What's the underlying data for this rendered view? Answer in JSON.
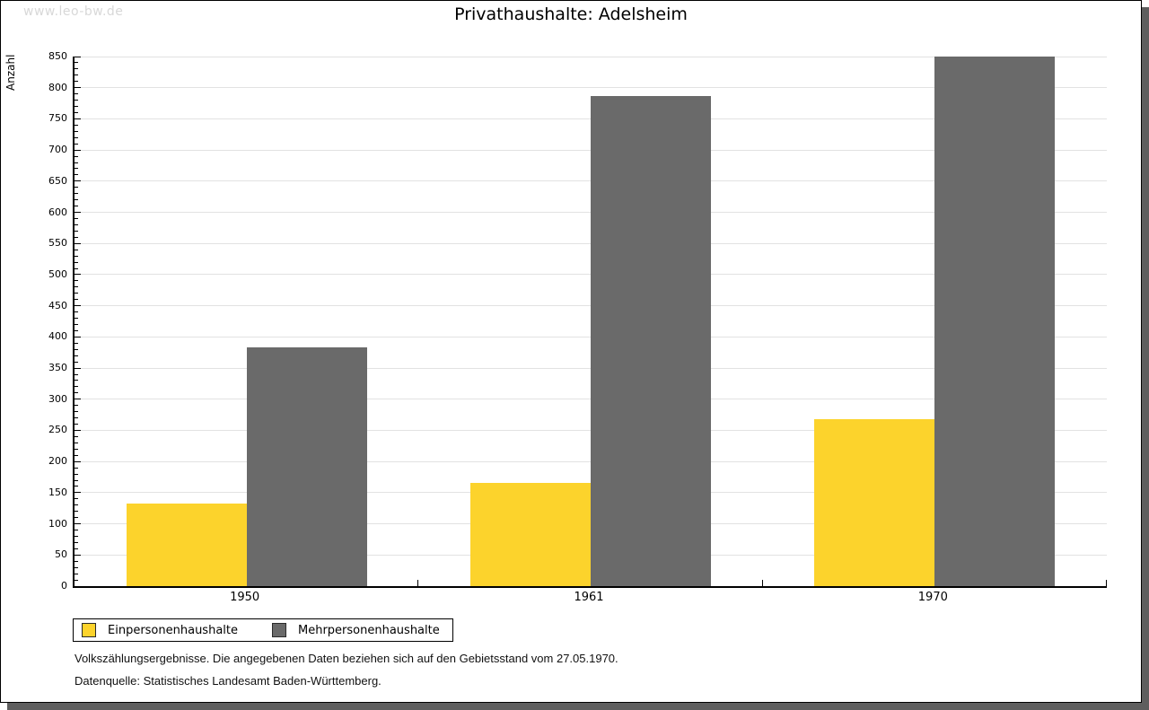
{
  "watermark": "www.leo-bw.de",
  "title": "Privathaushalte: Adelsheim",
  "chart_data": {
    "type": "bar",
    "title": "Privathaushalte: Adelsheim",
    "categories": [
      "1950",
      "1961",
      "1970"
    ],
    "series": [
      {
        "name": "Einpersonenhaushalte",
        "color": "#fcd32c",
        "values": [
          133,
          165,
          268
        ]
      },
      {
        "name": "Mehrpersonenhaushalte",
        "color": "#6a6a6a",
        "values": [
          383,
          786,
          850
        ]
      }
    ],
    "xlabel": "",
    "ylabel": "Anzahl",
    "ylim": [
      0,
      850
    ],
    "ytick_step": 50,
    "minor_tick_step": 10,
    "grid": true,
    "legend_position": "bottom-left",
    "gridline_color": "#e2e2e2",
    "axis_color": "#000000"
  },
  "footer": {
    "line1": "Volkszählungsergebnisse. Die angegebenen Daten beziehen sich auf den Gebietsstand vom 27.05.1970.",
    "line2": "Datenquelle: Statistisches Landesamt Baden-Württemberg."
  }
}
